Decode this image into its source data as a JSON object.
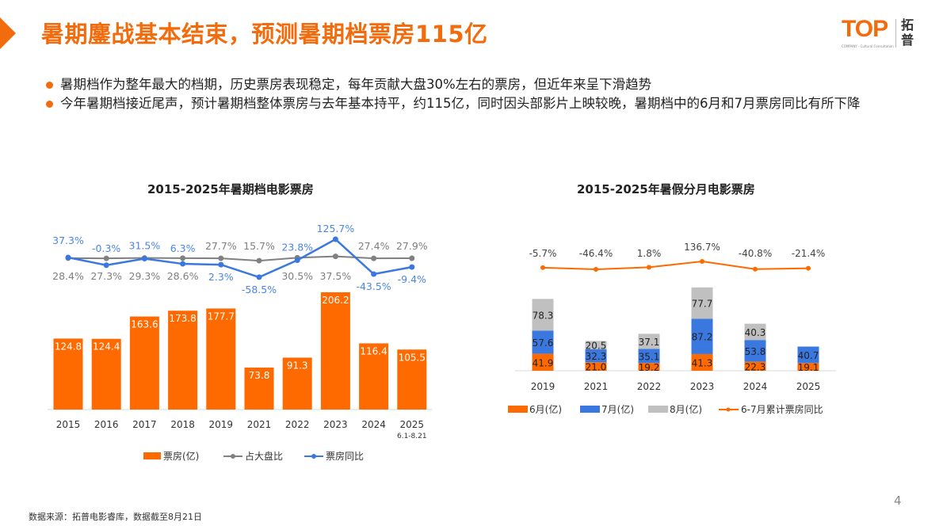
{
  "header": {
    "title": "暑期鏖战基本结束，预测暑期档票房115亿",
    "logo_text": "TOP",
    "logo_cn": "拓普",
    "logo_sub": "COMPANY · Cultural Consultation"
  },
  "bullets": [
    "暑期档作为整年最大的档期，历史票房表现稳定，每年贡献大盘30%左右的票房，但近年来呈下滑趋势",
    "今年暑期档接近尾声，预计暑期档整体票房与去年基本持平，约115亿，同时因头部影片上映较晚，暑期档中的6月和7月票房同比有所下降"
  ],
  "colors": {
    "accent": "#f26c0d",
    "orange": "#ff6a00",
    "blue": "#3a78e0",
    "gray": "#808080",
    "light_gray": "#c0c0c0"
  },
  "chart_data": [
    {
      "type": "bar+line",
      "title": "2015-2025年暑期档电影票房",
      "categories": [
        "2015",
        "2016",
        "2017",
        "2018",
        "2019",
        "2021",
        "2022",
        "2023",
        "2024",
        "2025"
      ],
      "category_note": {
        "2025": "6.1-8.21"
      },
      "series": [
        {
          "name": "票房(亿)",
          "type": "bar",
          "values": [
            124.8,
            124.4,
            163.6,
            173.8,
            177.7,
            73.8,
            91.3,
            206.2,
            116.4,
            105.5
          ]
        },
        {
          "name": "占大盘比",
          "type": "line",
          "values": [
            28.4,
            27.3,
            29.3,
            28.6,
            27.7,
            15.7,
            30.5,
            37.5,
            27.4,
            27.9
          ],
          "unit": "%"
        },
        {
          "name": "票房同比",
          "type": "line",
          "values": [
            37.3,
            -0.3,
            31.5,
            6.3,
            2.3,
            -58.5,
            23.8,
            125.7,
            -43.5,
            -9.4
          ],
          "unit": "%"
        }
      ],
      "legend": "bottom"
    },
    {
      "type": "stacked-bar+line",
      "title": "2015-2025年暑假分月电影票房",
      "categories": [
        "2019",
        "2021",
        "2022",
        "2023",
        "2024",
        "2025"
      ],
      "series": [
        {
          "name": "6月(亿)",
          "type": "bar",
          "values": [
            41.9,
            21.0,
            19.2,
            41.3,
            22.3,
            19.1
          ]
        },
        {
          "name": "7月(亿)",
          "type": "bar",
          "values": [
            57.6,
            32.3,
            35.1,
            87.2,
            53.8,
            40.7
          ]
        },
        {
          "name": "8月(亿)",
          "type": "bar",
          "values": [
            78.3,
            20.5,
            37.1,
            77.7,
            40.3,
            null
          ]
        },
        {
          "name": "6-7月累计票房同比",
          "type": "line",
          "values": [
            -5.7,
            -46.4,
            1.8,
            136.7,
            -40.8,
            -21.4
          ],
          "unit": "%"
        }
      ],
      "legend": "bottom"
    }
  ],
  "footer": {
    "source": "数据来源：拓普电影睿库，数据截至8月21日",
    "page": "4"
  }
}
